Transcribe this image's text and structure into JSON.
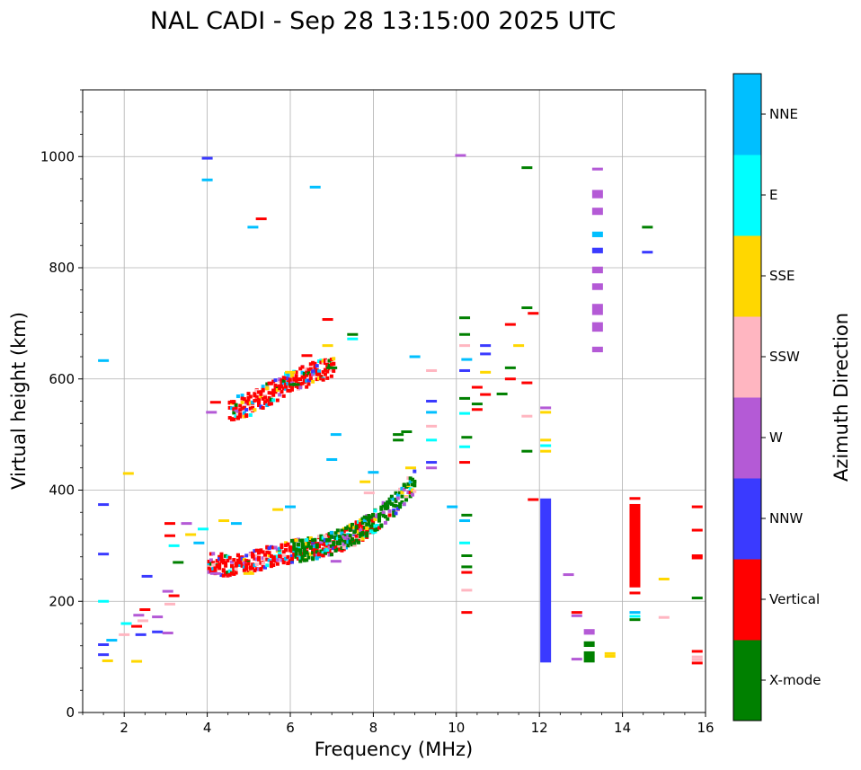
{
  "chart_data": {
    "type": "scatter",
    "title": "NAL CADI - Sep 28 13:15:00 2025 UTC",
    "xlabel": "Frequency (MHz)",
    "ylabel": "Virtual height (km)",
    "xlim": [
      1,
      16
    ],
    "ylim": [
      0,
      1120
    ],
    "xticks": [
      2,
      4,
      6,
      8,
      10,
      12,
      14,
      16
    ],
    "yticks": [
      0,
      200,
      400,
      600,
      800,
      1000
    ],
    "grid": true,
    "colorbar": {
      "label": "Azimuth Direction",
      "categories": [
        {
          "name": "X-mode",
          "color": "#008000"
        },
        {
          "name": "Vertical",
          "color": "#ff0000"
        },
        {
          "name": "NNW",
          "color": "#3a3aff"
        },
        {
          "name": "W",
          "color": "#b45ad6"
        },
        {
          "name": "SSW",
          "color": "#ffb6c1"
        },
        {
          "name": "SSE",
          "color": "#ffd700"
        },
        {
          "name": "E",
          "color": "#00ffff"
        },
        {
          "name": "NNE",
          "color": "#00bfff"
        }
      ]
    },
    "traces": [
      {
        "name": "F-layer O-mode trace",
        "azimuth": "Vertical",
        "freq": [
          4.0,
          4.5,
          5.0,
          5.5,
          6.0,
          6.5,
          7.0,
          7.5,
          8.0
        ],
        "height": [
          268,
          265,
          270,
          280,
          290,
          295,
          305,
          320,
          345
        ]
      },
      {
        "name": "F-layer X-mode trace",
        "azimuth": "X-mode",
        "freq": [
          6.0,
          6.5,
          7.0,
          7.5,
          8.0,
          8.5,
          9.0
        ],
        "height": [
          290,
          295,
          305,
          320,
          345,
          375,
          420
        ]
      },
      {
        "name": "F-layer second hop",
        "azimuth": "Vertical",
        "freq": [
          4.5,
          5.0,
          5.5,
          6.0,
          6.5,
          7.0
        ],
        "height": [
          545,
          555,
          575,
          595,
          610,
          620
        ]
      }
    ],
    "echoes": [
      {
        "f": 1.5,
        "h": 633,
        "az": "NNE"
      },
      {
        "f": 1.5,
        "h": 374,
        "az": "NNW"
      },
      {
        "f": 1.5,
        "h": 285,
        "az": "NNW"
      },
      {
        "f": 1.5,
        "h": 200,
        "az": "E"
      },
      {
        "f": 1.5,
        "h": 122,
        "az": "NNW"
      },
      {
        "f": 1.5,
        "h": 104,
        "az": "NNW"
      },
      {
        "f": 1.6,
        "h": 93,
        "az": "SSE"
      },
      {
        "f": 1.7,
        "h": 130,
        "az": "NNE"
      },
      {
        "f": 2.0,
        "h": 140,
        "az": "SSW"
      },
      {
        "f": 2.05,
        "h": 160,
        "az": "E"
      },
      {
        "f": 2.1,
        "h": 430,
        "az": "SSE"
      },
      {
        "f": 2.3,
        "h": 155,
        "az": "Vertical"
      },
      {
        "f": 2.3,
        "h": 92,
        "az": "SSE"
      },
      {
        "f": 2.35,
        "h": 175,
        "az": "W"
      },
      {
        "f": 2.4,
        "h": 140,
        "az": "NNW"
      },
      {
        "f": 2.45,
        "h": 165,
        "az": "SSW"
      },
      {
        "f": 2.5,
        "h": 185,
        "az": "Vertical"
      },
      {
        "f": 2.55,
        "h": 245,
        "az": "NNW"
      },
      {
        "f": 2.8,
        "h": 172,
        "az": "W"
      },
      {
        "f": 2.8,
        "h": 145,
        "az": "NNW"
      },
      {
        "f": 3.05,
        "h": 218,
        "az": "W"
      },
      {
        "f": 3.05,
        "h": 143,
        "az": "W"
      },
      {
        "f": 3.1,
        "h": 195,
        "az": "SSW"
      },
      {
        "f": 3.2,
        "h": 210,
        "az": "Vertical"
      },
      {
        "f": 3.1,
        "h": 340,
        "az": "Vertical"
      },
      {
        "f": 3.1,
        "h": 318,
        "az": "Vertical"
      },
      {
        "f": 3.2,
        "h": 300,
        "az": "E"
      },
      {
        "f": 3.3,
        "h": 270,
        "az": "X-mode"
      },
      {
        "f": 3.5,
        "h": 340,
        "az": "W"
      },
      {
        "f": 3.6,
        "h": 320,
        "az": "SSE"
      },
      {
        "f": 3.8,
        "h": 305,
        "az": "NNE"
      },
      {
        "f": 3.9,
        "h": 330,
        "az": "E"
      },
      {
        "f": 4.0,
        "h": 997,
        "az": "NNW"
      },
      {
        "f": 4.0,
        "h": 958,
        "az": "NNE"
      },
      {
        "f": 4.1,
        "h": 540,
        "az": "W"
      },
      {
        "f": 4.2,
        "h": 558,
        "az": "Vertical"
      },
      {
        "f": 4.2,
        "h": 250,
        "az": "W"
      },
      {
        "f": 4.4,
        "h": 345,
        "az": "SSE"
      },
      {
        "f": 4.7,
        "h": 340,
        "az": "NNE"
      },
      {
        "f": 5.0,
        "h": 250,
        "az": "SSE"
      },
      {
        "f": 5.1,
        "h": 873,
        "az": "NNE"
      },
      {
        "f": 5.3,
        "h": 888,
        "az": "Vertical"
      },
      {
        "f": 5.7,
        "h": 365,
        "az": "SSE"
      },
      {
        "f": 6.0,
        "h": 612,
        "az": "SSE"
      },
      {
        "f": 6.1,
        "h": 590,
        "az": "X-mode"
      },
      {
        "f": 6.0,
        "h": 370,
        "az": "NNE"
      },
      {
        "f": 6.4,
        "h": 642,
        "az": "Vertical"
      },
      {
        "f": 6.6,
        "h": 945,
        "az": "NNE"
      },
      {
        "f": 6.9,
        "h": 707,
        "az": "Vertical"
      },
      {
        "f": 6.9,
        "h": 660,
        "az": "SSE"
      },
      {
        "f": 7.0,
        "h": 620,
        "az": "X-mode"
      },
      {
        "f": 7.1,
        "h": 500,
        "az": "NNE"
      },
      {
        "f": 7.0,
        "h": 455,
        "az": "NNE"
      },
      {
        "f": 7.1,
        "h": 272,
        "az": "W"
      },
      {
        "f": 7.5,
        "h": 680,
        "az": "X-mode"
      },
      {
        "f": 7.5,
        "h": 672,
        "az": "E"
      },
      {
        "f": 7.8,
        "h": 415,
        "az": "SSE"
      },
      {
        "f": 7.9,
        "h": 395,
        "az": "SSW"
      },
      {
        "f": 8.0,
        "h": 432,
        "az": "NNE"
      },
      {
        "f": 8.6,
        "h": 500,
        "az": "X-mode"
      },
      {
        "f": 8.6,
        "h": 490,
        "az": "X-mode"
      },
      {
        "f": 8.8,
        "h": 505,
        "az": "X-mode"
      },
      {
        "f": 8.9,
        "h": 440,
        "az": "SSE"
      },
      {
        "f": 9.0,
        "h": 640,
        "az": "NNE"
      },
      {
        "f": 9.4,
        "h": 615,
        "az": "SSW"
      },
      {
        "f": 9.4,
        "h": 560,
        "az": "NNW"
      },
      {
        "f": 9.4,
        "h": 540,
        "az": "NNE"
      },
      {
        "f": 9.4,
        "h": 515,
        "az": "SSW"
      },
      {
        "f": 9.4,
        "h": 490,
        "az": "E"
      },
      {
        "f": 9.4,
        "h": 450,
        "az": "NNW"
      },
      {
        "f": 9.4,
        "h": 440,
        "az": "W"
      },
      {
        "f": 9.9,
        "h": 370,
        "az": "NNE"
      },
      {
        "f": 10.1,
        "h": 1002,
        "az": "W"
      },
      {
        "f": 10.2,
        "h": 615,
        "az": "NNW"
      },
      {
        "f": 10.2,
        "h": 710,
        "az": "X-mode"
      },
      {
        "f": 10.2,
        "h": 680,
        "az": "X-mode"
      },
      {
        "f": 10.2,
        "h": 660,
        "az": "SSW"
      },
      {
        "f": 10.25,
        "h": 635,
        "az": "NNE"
      },
      {
        "f": 10.2,
        "h": 565,
        "az": "X-mode"
      },
      {
        "f": 10.2,
        "h": 538,
        "az": "E"
      },
      {
        "f": 10.25,
        "h": 495,
        "az": "X-mode"
      },
      {
        "f": 10.2,
        "h": 478,
        "az": "E"
      },
      {
        "f": 10.2,
        "h": 450,
        "az": "Vertical"
      },
      {
        "f": 10.25,
        "h": 355,
        "az": "X-mode"
      },
      {
        "f": 10.2,
        "h": 345,
        "az": "NNE"
      },
      {
        "f": 10.2,
        "h": 305,
        "az": "E"
      },
      {
        "f": 10.25,
        "h": 282,
        "az": "X-mode"
      },
      {
        "f": 10.25,
        "h": 262,
        "az": "X-mode"
      },
      {
        "f": 10.25,
        "h": 252,
        "az": "Vertical"
      },
      {
        "f": 10.25,
        "h": 220,
        "az": "SSW"
      },
      {
        "f": 10.25,
        "h": 180,
        "az": "Vertical"
      },
      {
        "f": 10.5,
        "h": 585,
        "az": "Vertical"
      },
      {
        "f": 10.5,
        "h": 555,
        "az": "X-mode"
      },
      {
        "f": 10.5,
        "h": 545,
        "az": "Vertical"
      },
      {
        "f": 10.7,
        "h": 660,
        "az": "NNW"
      },
      {
        "f": 10.7,
        "h": 645,
        "az": "NNW"
      },
      {
        "f": 10.7,
        "h": 612,
        "az": "SSE"
      },
      {
        "f": 10.7,
        "h": 572,
        "az": "Vertical"
      },
      {
        "f": 11.1,
        "h": 573,
        "az": "X-mode"
      },
      {
        "f": 11.3,
        "h": 698,
        "az": "Vertical"
      },
      {
        "f": 11.3,
        "h": 600,
        "az": "Vertical"
      },
      {
        "f": 11.3,
        "h": 620,
        "az": "X-mode"
      },
      {
        "f": 11.5,
        "h": 660,
        "az": "SSE"
      },
      {
        "f": 11.7,
        "h": 980,
        "az": "X-mode"
      },
      {
        "f": 11.7,
        "h": 728,
        "az": "X-mode"
      },
      {
        "f": 11.7,
        "h": 593,
        "az": "Vertical"
      },
      {
        "f": 11.7,
        "h": 533,
        "az": "SSW"
      },
      {
        "f": 11.7,
        "h": 470,
        "az": "X-mode"
      },
      {
        "f": 11.85,
        "h": 383,
        "az": "Vertical"
      },
      {
        "f": 11.85,
        "h": 718,
        "az": "Vertical"
      },
      {
        "f": 12.15,
        "h": 548,
        "az": "W"
      },
      {
        "f": 12.15,
        "h": 540,
        "az": "SSE"
      },
      {
        "f": 12.15,
        "h": 490,
        "az": "SSE"
      },
      {
        "f": 12.15,
        "h": 480,
        "az": "E"
      },
      {
        "f": 12.15,
        "h": 470,
        "az": "SSE"
      },
      {
        "f": 12.7,
        "h": 248,
        "az": "W"
      },
      {
        "f": 12.9,
        "h": 180,
        "az": "Vertical"
      },
      {
        "f": 12.9,
        "h": 174,
        "az": "W"
      },
      {
        "f": 12.9,
        "h": 96,
        "az": "W"
      },
      {
        "f": 13.7,
        "h": 106,
        "az": "SSE"
      },
      {
        "f": 13.7,
        "h": 101,
        "az": "SSE"
      },
      {
        "f": 14.3,
        "h": 215,
        "az": "Vertical"
      },
      {
        "f": 14.3,
        "h": 180,
        "az": "NNE"
      },
      {
        "f": 14.3,
        "h": 173,
        "az": "E"
      },
      {
        "f": 14.3,
        "h": 167,
        "az": "X-mode"
      },
      {
        "f": 14.3,
        "h": 385,
        "az": "Vertical"
      },
      {
        "f": 14.6,
        "h": 873,
        "az": "X-mode"
      },
      {
        "f": 14.6,
        "h": 828,
        "az": "NNW"
      },
      {
        "f": 15.0,
        "h": 240,
        "az": "SSE"
      },
      {
        "f": 15.0,
        "h": 171,
        "az": "SSW"
      },
      {
        "f": 15.8,
        "h": 370,
        "az": "Vertical"
      },
      {
        "f": 15.8,
        "h": 328,
        "az": "Vertical"
      },
      {
        "f": 15.8,
        "h": 282,
        "az": "Vertical"
      },
      {
        "f": 15.8,
        "h": 278,
        "az": "Vertical"
      },
      {
        "f": 15.8,
        "h": 206,
        "az": "X-mode"
      },
      {
        "f": 15.8,
        "h": 110,
        "az": "Vertical"
      },
      {
        "f": 15.8,
        "h": 100,
        "az": "SSW"
      },
      {
        "f": 15.8,
        "h": 95,
        "az": "SSW"
      },
      {
        "f": 15.8,
        "h": 89,
        "az": "Vertical"
      }
    ],
    "bands": [
      {
        "f": 12.15,
        "h0": 90,
        "h1": 385,
        "az": "NNW"
      },
      {
        "f": 14.3,
        "h0": 225,
        "h1": 375,
        "az": "Vertical"
      },
      {
        "f": 13.4,
        "h0": 975,
        "h1": 980,
        "az": "W"
      },
      {
        "f": 13.4,
        "h0": 925,
        "h1": 940,
        "az": "W"
      },
      {
        "f": 13.4,
        "h0": 895,
        "h1": 908,
        "az": "W"
      },
      {
        "f": 13.4,
        "h0": 855,
        "h1": 865,
        "az": "NNE"
      },
      {
        "f": 13.4,
        "h0": 826,
        "h1": 836,
        "az": "NNW"
      },
      {
        "f": 13.4,
        "h0": 790,
        "h1": 802,
        "az": "W"
      },
      {
        "f": 13.4,
        "h0": 760,
        "h1": 772,
        "az": "W"
      },
      {
        "f": 13.4,
        "h0": 715,
        "h1": 735,
        "az": "W"
      },
      {
        "f": 13.4,
        "h0": 685,
        "h1": 702,
        "az": "W"
      },
      {
        "f": 13.4,
        "h0": 648,
        "h1": 658,
        "az": "W"
      },
      {
        "f": 13.2,
        "h0": 140,
        "h1": 150,
        "az": "W"
      },
      {
        "f": 13.2,
        "h0": 118,
        "h1": 128,
        "az": "X-mode"
      },
      {
        "f": 13.2,
        "h0": 90,
        "h1": 110,
        "az": "X-mode"
      }
    ]
  }
}
